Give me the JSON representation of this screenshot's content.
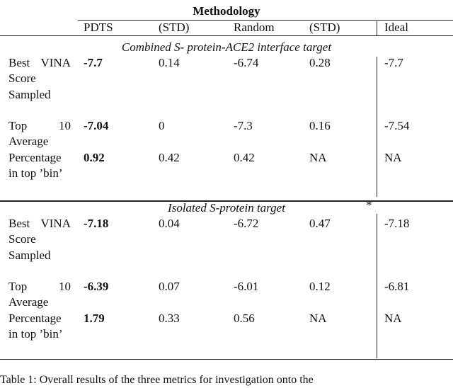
{
  "title": "Methodology",
  "header": [
    "PDTS",
    "(STD)",
    "Random",
    "(STD)",
    "Ideal"
  ],
  "sections": [
    {
      "caption": "Combined S- protein-ACE2 interface target",
      "rows": [
        {
          "label": "Best VINA Score Sampled",
          "cells": [
            "-7.7",
            "0.14",
            "-6.74",
            "0.28",
            "-7.7"
          ]
        },
        {
          "label": "Top 10 Average",
          "cells": [
            "-7.04",
            "0",
            "-7.3",
            "0.16",
            "-7.54"
          ]
        },
        {
          "label": "Percentage in top ’bin’",
          "cells": [
            "0.92",
            "0.42",
            "0.42",
            "NA",
            "NA"
          ]
        }
      ]
    },
    {
      "caption": "Isolated S-protein target",
      "mark": "*",
      "rows": [
        {
          "label": "Best VINA Score Sampled",
          "cells": [
            "-7.18",
            "0.04",
            "-6.72",
            "0.47",
            "-7.18"
          ]
        },
        {
          "label": "Top 10 Average",
          "cells": [
            "-6.39",
            "0.07",
            "-6.01",
            "0.12",
            "-6.81"
          ]
        },
        {
          "label": "Percentage in top ’bin’",
          "cells": [
            "1.79",
            "0.33",
            "0.56",
            "NA",
            "NA"
          ]
        }
      ]
    }
  ],
  "caption": "Table 1: Overall results of the three metrics for investigation onto the"
}
